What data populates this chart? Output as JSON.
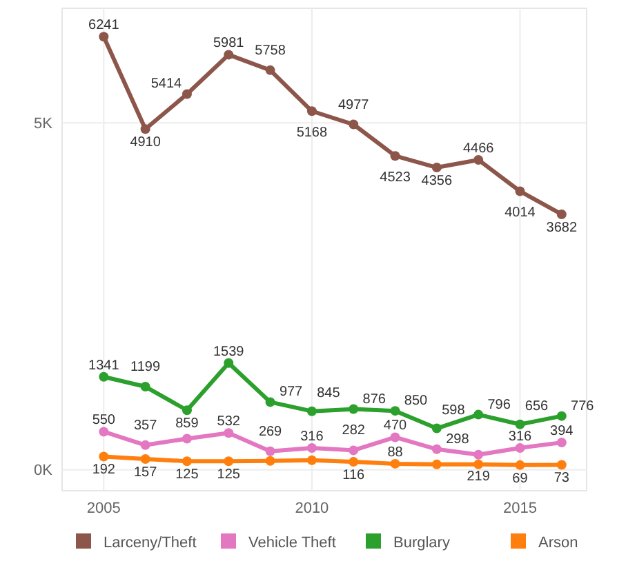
{
  "chart_data": {
    "type": "line",
    "x": [
      2005,
      2006,
      2007,
      2008,
      2009,
      2010,
      2011,
      2012,
      2013,
      2014,
      2015,
      2016
    ],
    "xlim": [
      2004,
      2016.6
    ],
    "xticks": [
      2005,
      2010,
      2015
    ],
    "ylim": [
      -300,
      6650
    ],
    "yticks": [
      {
        "value": 0,
        "label": "0K"
      },
      {
        "value": 5000,
        "label": "5K"
      }
    ],
    "grid": true,
    "legend": "bottom",
    "marker": "circle",
    "line_style": "solid",
    "series": [
      {
        "name": "Larceny/Theft",
        "color": "#8c564b",
        "values": [
          6241,
          4910,
          5414,
          5981,
          5758,
          5168,
          4977,
          4523,
          4356,
          4466,
          4014,
          3682
        ],
        "value_labels": [
          "6241",
          "4910",
          "5414",
          "5981",
          "5758",
          "5168",
          "4977",
          "4523",
          "4356",
          "4466",
          "4014",
          "3682"
        ]
      },
      {
        "name": "Vehicle Theft",
        "color": "#e377c2",
        "values": [
          550,
          357,
          450,
          532,
          269,
          316,
          282,
          470,
          298,
          219,
          316,
          394
        ],
        "value_labels": [
          "550",
          "357",
          null,
          "532",
          "269",
          "316",
          "282",
          "470",
          "298",
          "219",
          "316",
          "394"
        ]
      },
      {
        "name": "Burglary",
        "color": "#2ca02c",
        "values": [
          1341,
          1199,
          859,
          1539,
          977,
          845,
          876,
          850,
          598,
          796,
          656,
          776
        ],
        "value_labels": [
          "1341",
          "1199",
          "859",
          "1539",
          "977",
          "845",
          "876",
          "850",
          "598",
          "796",
          "656",
          "776"
        ]
      },
      {
        "name": "Arson",
        "color": "#ff7f0e",
        "values": [
          192,
          157,
          125,
          125,
          130,
          140,
          116,
          88,
          80,
          80,
          69,
          73
        ],
        "value_labels": [
          "192",
          "157",
          "125",
          "125",
          null,
          null,
          "116",
          "88",
          null,
          null,
          "69",
          "73"
        ]
      }
    ]
  }
}
